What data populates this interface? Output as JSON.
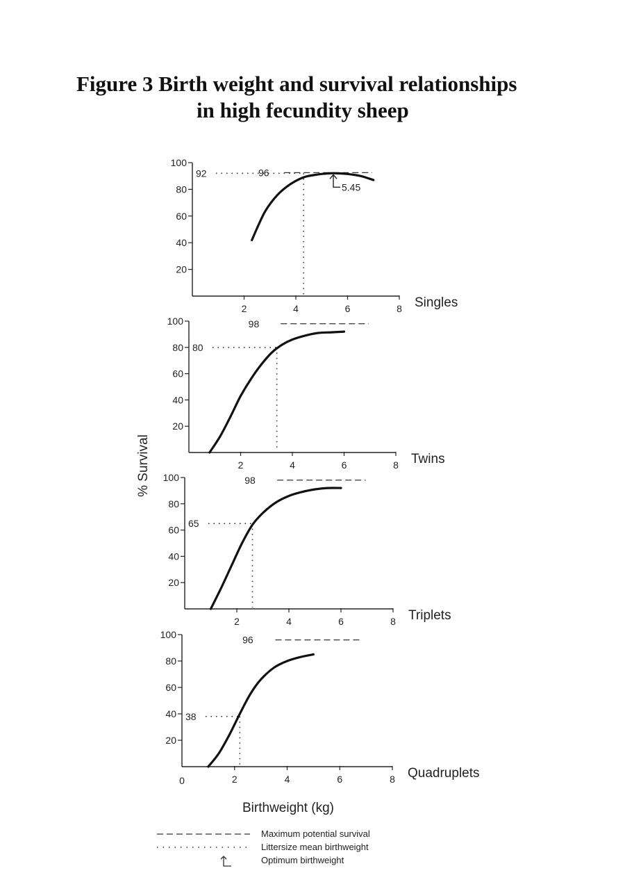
{
  "figure": {
    "title_line1": "Figure 3  Birth weight and survival relationships",
    "title_line2": "in high fecundity sheep"
  },
  "axis": {
    "ylabel": "% Survival",
    "xlabel": "Birthweight (kg)",
    "x_zero_label": "0"
  },
  "legend": {
    "items": [
      {
        "style": "dashed",
        "label": "Maximum potential survival"
      },
      {
        "style": "dotted",
        "label": "Littersize mean birthweight"
      },
      {
        "style": "marker",
        "label": "Optimum birthweight"
      }
    ]
  },
  "chart_data": [
    {
      "type": "line",
      "panel": "Singles",
      "xlim": [
        0,
        8
      ],
      "ylim": [
        0,
        100
      ],
      "xticks": [
        2,
        4,
        6,
        8
      ],
      "yticks": [
        20,
        40,
        60,
        80,
        100
      ],
      "curve": {
        "x": [
          2.3,
          2.8,
          3.3,
          3.8,
          4.3,
          4.8,
          5.3,
          5.6,
          6.0,
          6.5,
          7.0
        ],
        "y": [
          42,
          63,
          76,
          84,
          89,
          91,
          92,
          92,
          91.5,
          90,
          87
        ]
      },
      "max_potential": {
        "value": 96,
        "label": "96"
      },
      "mean_birthweight": {
        "x": 4.3,
        "y": 92,
        "label": "92"
      },
      "optimum": {
        "x": 5.45,
        "label": "5.45"
      }
    },
    {
      "type": "line",
      "panel": "Twins",
      "xlim": [
        0,
        8
      ],
      "ylim": [
        0,
        100
      ],
      "xticks": [
        2,
        4,
        6,
        8
      ],
      "yticks": [
        20,
        40,
        60,
        80,
        100
      ],
      "curve": {
        "x": [
          0.8,
          1.2,
          1.6,
          2.0,
          2.4,
          2.8,
          3.2,
          3.6,
          4.0,
          4.5,
          5.0,
          5.5,
          6.0
        ],
        "y": [
          0,
          12,
          27,
          43,
          56,
          67,
          76,
          82,
          86,
          89,
          91,
          91.5,
          92
        ]
      },
      "max_potential": {
        "value": 98,
        "label": "98"
      },
      "mean_birthweight": {
        "x": 3.4,
        "y": 80,
        "label": "80"
      }
    },
    {
      "type": "line",
      "panel": "Triplets",
      "xlim": [
        0,
        8
      ],
      "ylim": [
        0,
        100
      ],
      "xticks": [
        2,
        4,
        6,
        8
      ],
      "yticks": [
        20,
        40,
        60,
        80,
        100
      ],
      "curve": {
        "x": [
          1.0,
          1.4,
          1.8,
          2.2,
          2.6,
          3.0,
          3.5,
          4.0,
          4.5,
          5.0,
          5.5,
          6.0
        ],
        "y": [
          0,
          16,
          33,
          50,
          64,
          73,
          81,
          86,
          89,
          91,
          92,
          92
        ]
      },
      "max_potential": {
        "value": 98,
        "label": "98"
      },
      "mean_birthweight": {
        "x": 2.6,
        "y": 65,
        "label": "65"
      }
    },
    {
      "type": "line",
      "panel": "Quadruplets",
      "xlim": [
        0,
        8
      ],
      "ylim": [
        0,
        100
      ],
      "xticks": [
        2,
        4,
        6,
        8
      ],
      "yticks": [
        20,
        40,
        60,
        80,
        100
      ],
      "curve": {
        "x": [
          1.0,
          1.4,
          1.8,
          2.2,
          2.6,
          3.0,
          3.5,
          4.0,
          4.5,
          5.0
        ],
        "y": [
          0,
          10,
          24,
          40,
          55,
          66,
          75,
          80,
          83,
          85
        ]
      },
      "max_potential": {
        "value": 96,
        "label": "96"
      },
      "mean_birthweight": {
        "x": 2.2,
        "y": 38,
        "label": "38"
      }
    }
  ]
}
